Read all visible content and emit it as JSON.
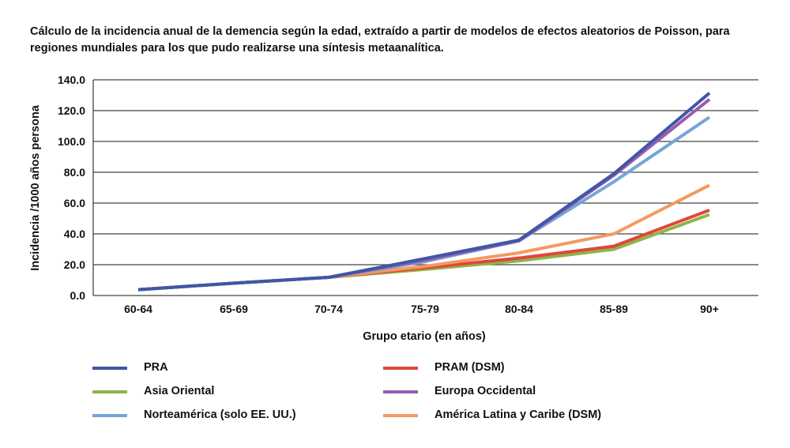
{
  "chart_data": {
    "type": "line",
    "title": "Cálculo de la incidencia anual de la demencia según la edad, extraído a partir de modelos de efectos aleatorios de Poisson, para regiones mundiales para los que pudo realizarse una síntesis metaanalítica.",
    "xlabel": "Grupo etario (en años)",
    "ylabel": "Incidencia /1000 años persona",
    "ylim": [
      0,
      140
    ],
    "yticks": [
      "0.0",
      "20.0",
      "40.0",
      "60.0",
      "80.0",
      "100.0",
      "120.0",
      "140.0"
    ],
    "categories": [
      "60-64",
      "65-69",
      "70-74",
      "75-79",
      "80-84",
      "85-89",
      "90+"
    ],
    "grid": true,
    "legend_position": "bottom",
    "series": [
      {
        "name": "PRA",
        "color": "#3f57a6",
        "values": [
          3.8,
          8,
          11.8,
          24,
          36,
          79,
          131.4
        ]
      },
      {
        "name": "PRAM (DSM)",
        "color": "#e0463c",
        "values": [
          3.8,
          8,
          11.8,
          18,
          24.3,
          32,
          55.4
        ]
      },
      {
        "name": "Asia Oriental",
        "color": "#8db548",
        "values": [
          3.8,
          8,
          11.8,
          17,
          22.5,
          30,
          52.5
        ]
      },
      {
        "name": "Europa Occidental",
        "color": "#9a5bb0",
        "values": [
          3.8,
          8,
          11.8,
          23,
          35.5,
          78,
          127.3
        ]
      },
      {
        "name": "Norteamérica (solo EE. UU.)",
        "color": "#74a6d8",
        "values": [
          3.8,
          8,
          11.8,
          22,
          35.5,
          73.8,
          115.7
        ]
      },
      {
        "name": "América Latina y Caribe (DSM)",
        "color": "#f39a62",
        "values": [
          3.8,
          8,
          11.8,
          19,
          27.7,
          40,
          71.6
        ]
      }
    ]
  }
}
